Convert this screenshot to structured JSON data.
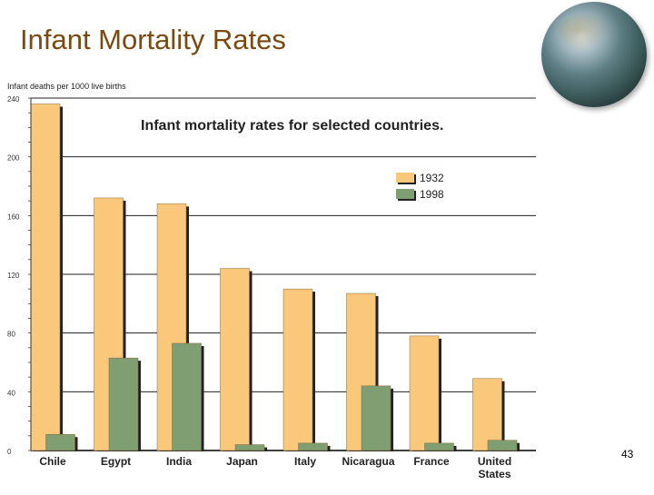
{
  "slide": {
    "title": "Infant Mortality Rates",
    "page_number": "43"
  },
  "colors": {
    "series_1932": "#f9c87a",
    "series_1998": "#7f9e72",
    "title": "#7a4a10"
  },
  "chart_data": {
    "type": "bar",
    "title": "Infant mortality rates for selected countries.",
    "ylabel": "Infant deaths per 1000 live births",
    "xlabel": "",
    "ylim": [
      0,
      240
    ],
    "yticks": [
      0,
      40,
      80,
      120,
      160,
      200,
      240
    ],
    "grid": true,
    "legend": "top-right",
    "categories": [
      "Chile",
      "Egypt",
      "India",
      "Japan",
      "Italy",
      "Nicaragua",
      "France",
      "United States"
    ],
    "series": [
      {
        "name": "1932",
        "values": [
          236,
          172,
          168,
          124,
          110,
          107,
          78,
          49
        ]
      },
      {
        "name": "1998",
        "values": [
          11,
          63,
          73,
          4,
          5,
          44,
          5,
          7
        ]
      }
    ]
  }
}
